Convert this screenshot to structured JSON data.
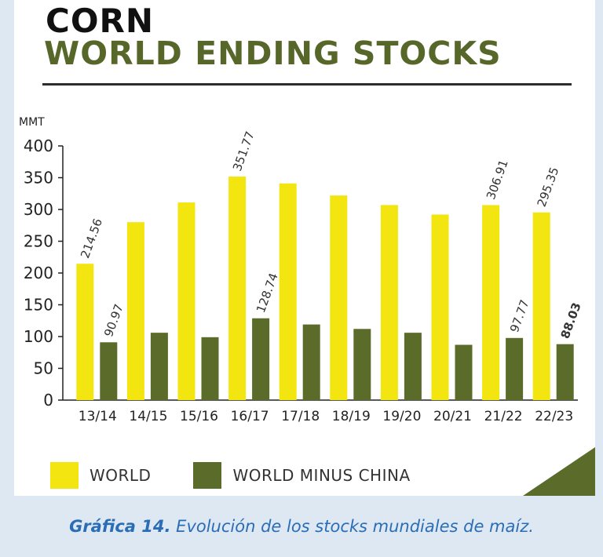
{
  "title_line1": "CORN",
  "title_line2": "WORLD ENDING STOCKS",
  "caption": {
    "label": "Gráfica 14.",
    "text": " Evolución de los stocks mundiales de maíz."
  },
  "legend": [
    {
      "label": "WORLD",
      "color": "#f2e510"
    },
    {
      "label": "WORLD MINUS CHINA",
      "color": "#5a6b2a"
    }
  ],
  "colors": {
    "title_primary": "#111111",
    "title_secondary": "#57672a",
    "caption": "#2a6db5"
  },
  "chart_data": {
    "type": "bar",
    "ylabel": "MMT",
    "ylim": [
      0,
      400
    ],
    "yticks": [
      0,
      50,
      100,
      150,
      200,
      250,
      300,
      350,
      400
    ],
    "categories": [
      "13/14",
      "14/15",
      "15/16",
      "16/17",
      "17/18",
      "18/19",
      "19/20",
      "20/21",
      "21/22",
      "22/23"
    ],
    "series": [
      {
        "name": "WORLD",
        "color": "#f2e510",
        "values": [
          214.56,
          280,
          311,
          351.77,
          341,
          322,
          307,
          292,
          306.91,
          295.35
        ],
        "labels": [
          "214.56",
          "",
          "",
          "351.77",
          "",
          "",
          "",
          "",
          "306.91",
          "295.35"
        ]
      },
      {
        "name": "WORLD MINUS CHINA",
        "color": "#5a6b2a",
        "values": [
          90.97,
          106,
          99,
          128.74,
          119,
          112,
          106,
          87,
          97.77,
          88.03
        ],
        "labels": [
          "90.97",
          "",
          "",
          "128.74",
          "",
          "",
          "",
          "",
          "97.77",
          "88.03"
        ]
      }
    ]
  }
}
